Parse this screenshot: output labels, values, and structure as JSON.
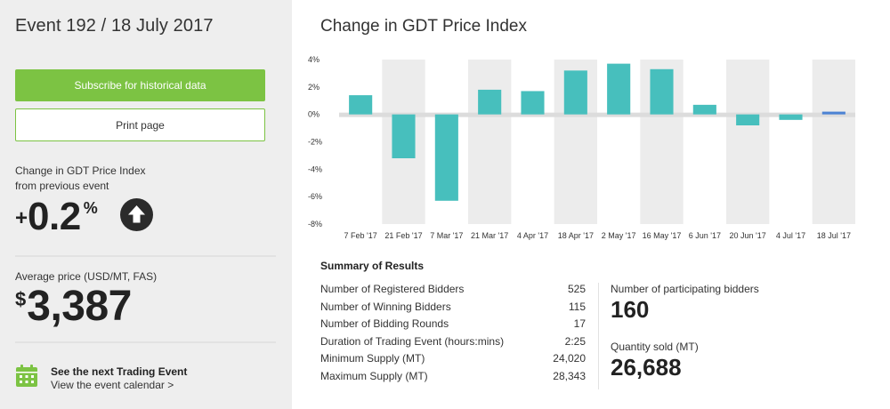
{
  "event": {
    "title": "Event 192 / 18 July 2017"
  },
  "buttons": {
    "subscribe": "Subscribe for historical data",
    "print": "Print page"
  },
  "change": {
    "label_line1": "Change in GDT Price Index",
    "label_line2": "from previous event",
    "sign": "+",
    "value": "0.2",
    "unit": "%",
    "direction_icon": "arrow-up-circle-icon"
  },
  "average": {
    "label": "Average price (USD/MT, FAS)",
    "currency": "$",
    "value": "3,387"
  },
  "next_event": {
    "icon": "calendar-icon",
    "title": "See the next Trading Event",
    "link": "View the event calendar >"
  },
  "chart_title": "Change in GDT Price Index",
  "chart_data": {
    "type": "bar",
    "title": "Change in GDT Price Index",
    "categories": [
      "7 Feb '17",
      "21 Feb '17",
      "7 Mar '17",
      "21 Mar '17",
      "4 Apr '17",
      "18 Apr '17",
      "2 May '17",
      "16 May '17",
      "6 Jun '17",
      "20 Jun '17",
      "4 Jul '17",
      "18 Jul '17"
    ],
    "values": [
      1.4,
      -3.2,
      -6.3,
      1.8,
      1.7,
      3.2,
      3.7,
      3.3,
      0.7,
      -0.8,
      -0.4,
      0.2
    ],
    "ylim": [
      -8,
      4
    ],
    "yticks": [
      -8,
      -6,
      -4,
      -2,
      0,
      2,
      4
    ],
    "ytick_labels": [
      "-8%",
      "-6%",
      "-4%",
      "-2%",
      "0%",
      "2%",
      "4%"
    ],
    "colors": {
      "bar": "#47bfbd",
      "highlight": "#4c83d4",
      "stripe": "#ececec",
      "zero_band": "#dcdcdc"
    }
  },
  "summary": {
    "title": "Summary of Results",
    "rows": [
      {
        "label": "Number of Registered Bidders",
        "value": "525"
      },
      {
        "label": "Number of Winning Bidders",
        "value": "115"
      },
      {
        "label": "Number of Bidding Rounds",
        "value": "17"
      },
      {
        "label": "Duration of Trading Event (hours:mins)",
        "value": "2:25"
      },
      {
        "label": "Minimum Supply (MT)",
        "value": "24,020"
      },
      {
        "label": "Maximum Supply (MT)",
        "value": "28,343"
      }
    ],
    "bidders_label": "Number of participating bidders",
    "bidders_value": "160",
    "quantity_label": "Quantity sold (MT)",
    "quantity_value": "26,688"
  }
}
